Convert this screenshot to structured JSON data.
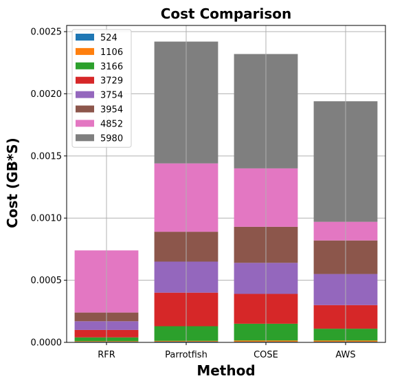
{
  "chart_data": {
    "type": "bar",
    "stacked": true,
    "title": "Cost Comparison",
    "xlabel": "Method",
    "ylabel": "Cost (GB*S)",
    "ylim": [
      0,
      0.00255
    ],
    "yticks": [
      0,
      0.0005,
      0.001,
      0.0015,
      0.002,
      0.0025
    ],
    "ytick_labels": [
      "0.0000",
      "0.0005",
      "0.0010",
      "0.0015",
      "0.0020",
      "0.0025"
    ],
    "grid": true,
    "legend_position": "top-left",
    "categories": [
      "RFR",
      "Parrotfish",
      "COSE",
      "AWS"
    ],
    "series": [
      {
        "name": "524",
        "color": "#1f77b4",
        "values": [
          5e-06,
          6e-06,
          5e-06,
          5e-06
        ]
      },
      {
        "name": "1106",
        "color": "#ff7f0e",
        "values": [
          5e-06,
          6e-06,
          1e-05,
          1e-05
        ]
      },
      {
        "name": "3166",
        "color": "#2ca02c",
        "values": [
          3e-05,
          0.000118,
          0.000135,
          9.5e-05
        ]
      },
      {
        "name": "3729",
        "color": "#d62728",
        "values": [
          6e-05,
          0.00027,
          0.00024,
          0.00019
        ]
      },
      {
        "name": "3754",
        "color": "#9467bd",
        "values": [
          7e-05,
          0.00025,
          0.00025,
          0.00025
        ]
      },
      {
        "name": "3954",
        "color": "#8c564b",
        "values": [
          7e-05,
          0.00024,
          0.00029,
          0.00027
        ]
      },
      {
        "name": "4852",
        "color": "#e377c2",
        "values": [
          0.0005,
          0.00055,
          0.00047,
          0.00015
        ]
      },
      {
        "name": "5980",
        "color": "#7f7f7f",
        "values": [
          0,
          0.00098,
          0.00092,
          0.00097
        ]
      }
    ]
  }
}
